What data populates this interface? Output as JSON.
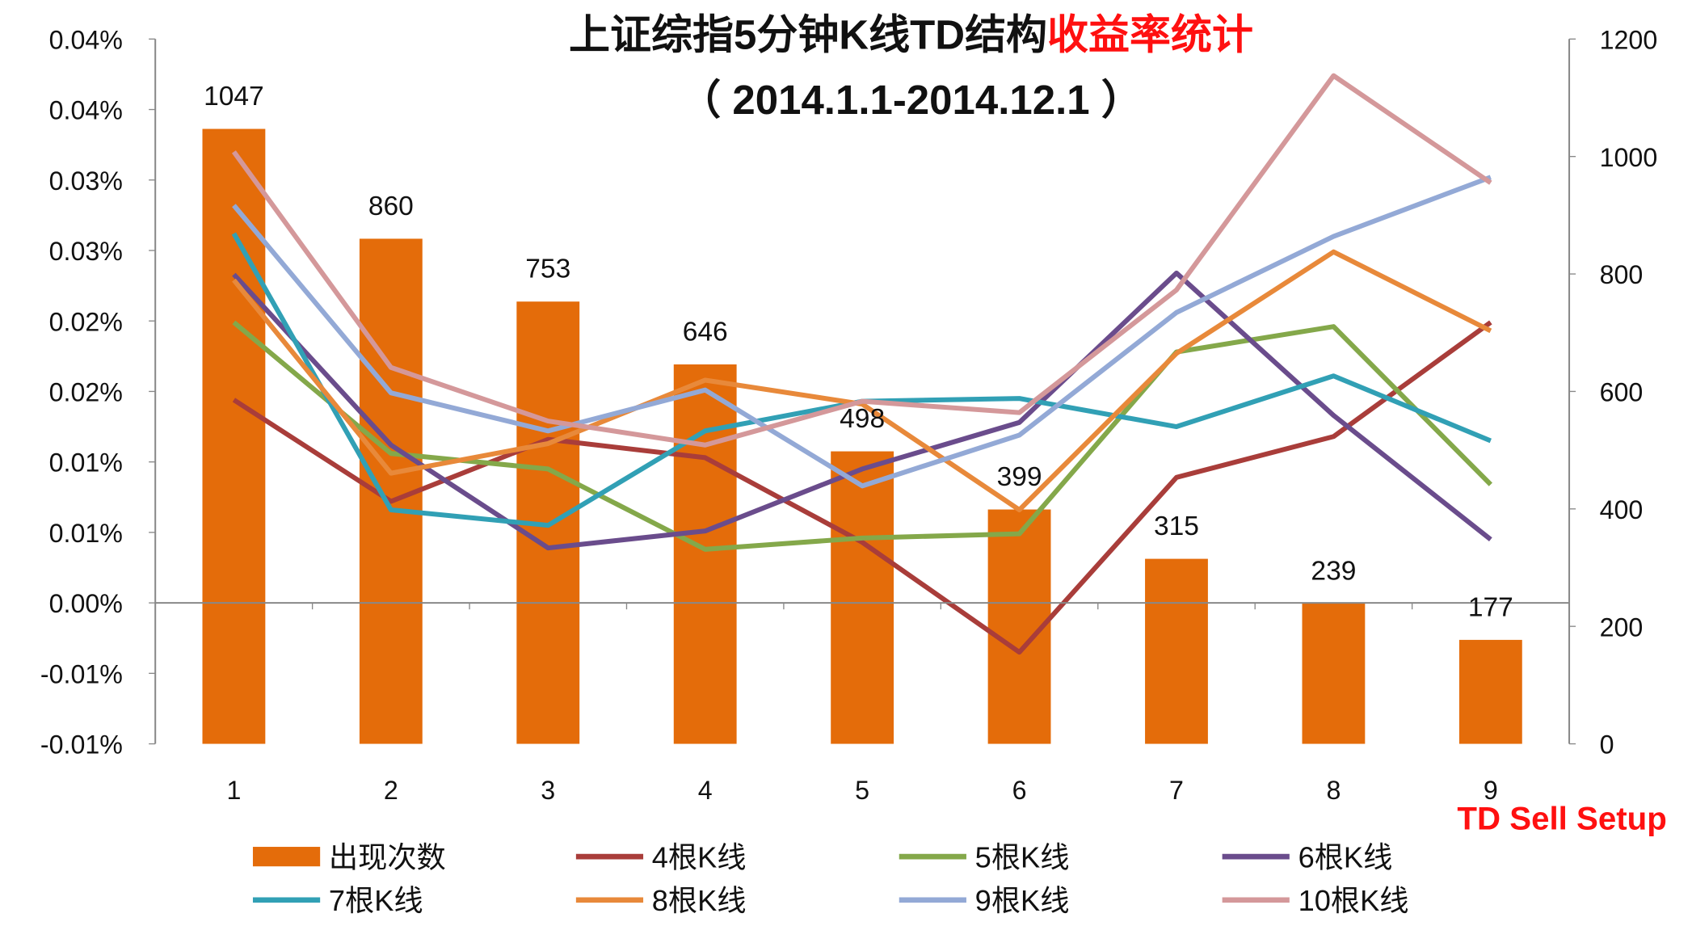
{
  "chart_data": {
    "type": "bar+line",
    "title": "上证综指5分钟K线TD结构",
    "title_highlight": "收益率统计",
    "subtitle": "（ 2014.1.1-2014.12.1 ）",
    "annotation": "TD Sell Setup",
    "categories": [
      "1",
      "2",
      "3",
      "4",
      "5",
      "6",
      "7",
      "8",
      "9"
    ],
    "left_axis": {
      "range": [
        -0.01,
        0.04
      ],
      "tick_values": [
        0.04,
        0.035,
        0.03,
        0.025,
        0.02,
        0.015,
        0.01,
        0.005,
        0,
        -0.005,
        -0.01
      ],
      "tick_labels": [
        "0.04%",
        "0.04%",
        "0.03%",
        "0.03%",
        "0.02%",
        "0.02%",
        "0.01%",
        "0.01%",
        "0.00%",
        "-0.01%",
        "-0.01%"
      ]
    },
    "right_axis": {
      "range": [
        0,
        1200
      ],
      "tick_values": [
        1200,
        1000,
        800,
        600,
        400,
        200,
        0
      ],
      "tick_labels": [
        "1200",
        "1000",
        "800",
        "600",
        "400",
        "200",
        "0"
      ]
    },
    "bars": {
      "name": "出现次数",
      "color": "#E46C0A",
      "values": [
        1047,
        860,
        753,
        646,
        498,
        399,
        315,
        239,
        177
      ]
    },
    "series": [
      {
        "name": "4根K线",
        "color": "#A93D3A",
        "values": [
          0.0144,
          0.0072,
          0.0116,
          0.0103,
          0.0043,
          -0.0035,
          0.0089,
          0.0118,
          0.0199
        ]
      },
      {
        "name": "5根K线",
        "color": "#84A84A",
        "values": [
          0.0199,
          0.0106,
          0.0095,
          0.0038,
          0.0046,
          0.0049,
          0.0178,
          0.0196,
          0.0084
        ]
      },
      {
        "name": "6根K线",
        "color": "#6A4C8C",
        "values": [
          0.0233,
          0.0112,
          0.0039,
          0.0051,
          0.0095,
          0.0128,
          0.0234,
          0.0133,
          0.0045
        ]
      },
      {
        "name": "7根K线",
        "color": "#31A0B5",
        "values": [
          0.0262,
          0.0066,
          0.0055,
          0.0122,
          0.0143,
          0.0145,
          0.0125,
          0.0161,
          0.0115
        ]
      },
      {
        "name": "8根K线",
        "color": "#E8893A",
        "values": [
          0.0229,
          0.0092,
          0.0113,
          0.0158,
          0.0141,
          0.0066,
          0.0177,
          0.0249,
          0.0193
        ]
      },
      {
        "name": "9根K线",
        "color": "#93A9D6",
        "values": [
          0.0282,
          0.0149,
          0.0122,
          0.0151,
          0.0083,
          0.0119,
          0.0206,
          0.026,
          0.0302
        ]
      },
      {
        "name": "10根K线",
        "color": "#D4989A",
        "values": [
          0.032,
          0.0167,
          0.0129,
          0.0112,
          0.0143,
          0.0135,
          0.0222,
          0.0374,
          0.0298
        ]
      }
    ],
    "legend_position": "bottom",
    "grid": false
  }
}
